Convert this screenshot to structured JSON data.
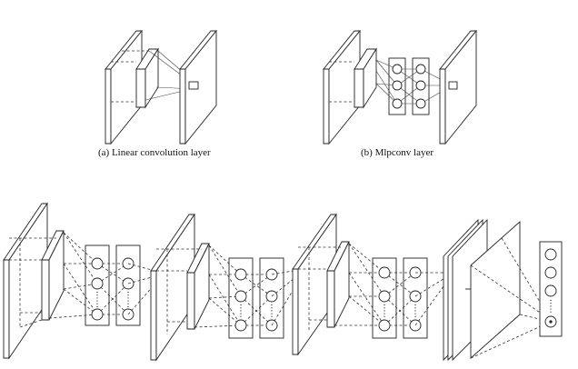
{
  "captions": {
    "a": "(a) Linear convolution layer",
    "b": "(b) Mlpconv layer"
  }
}
